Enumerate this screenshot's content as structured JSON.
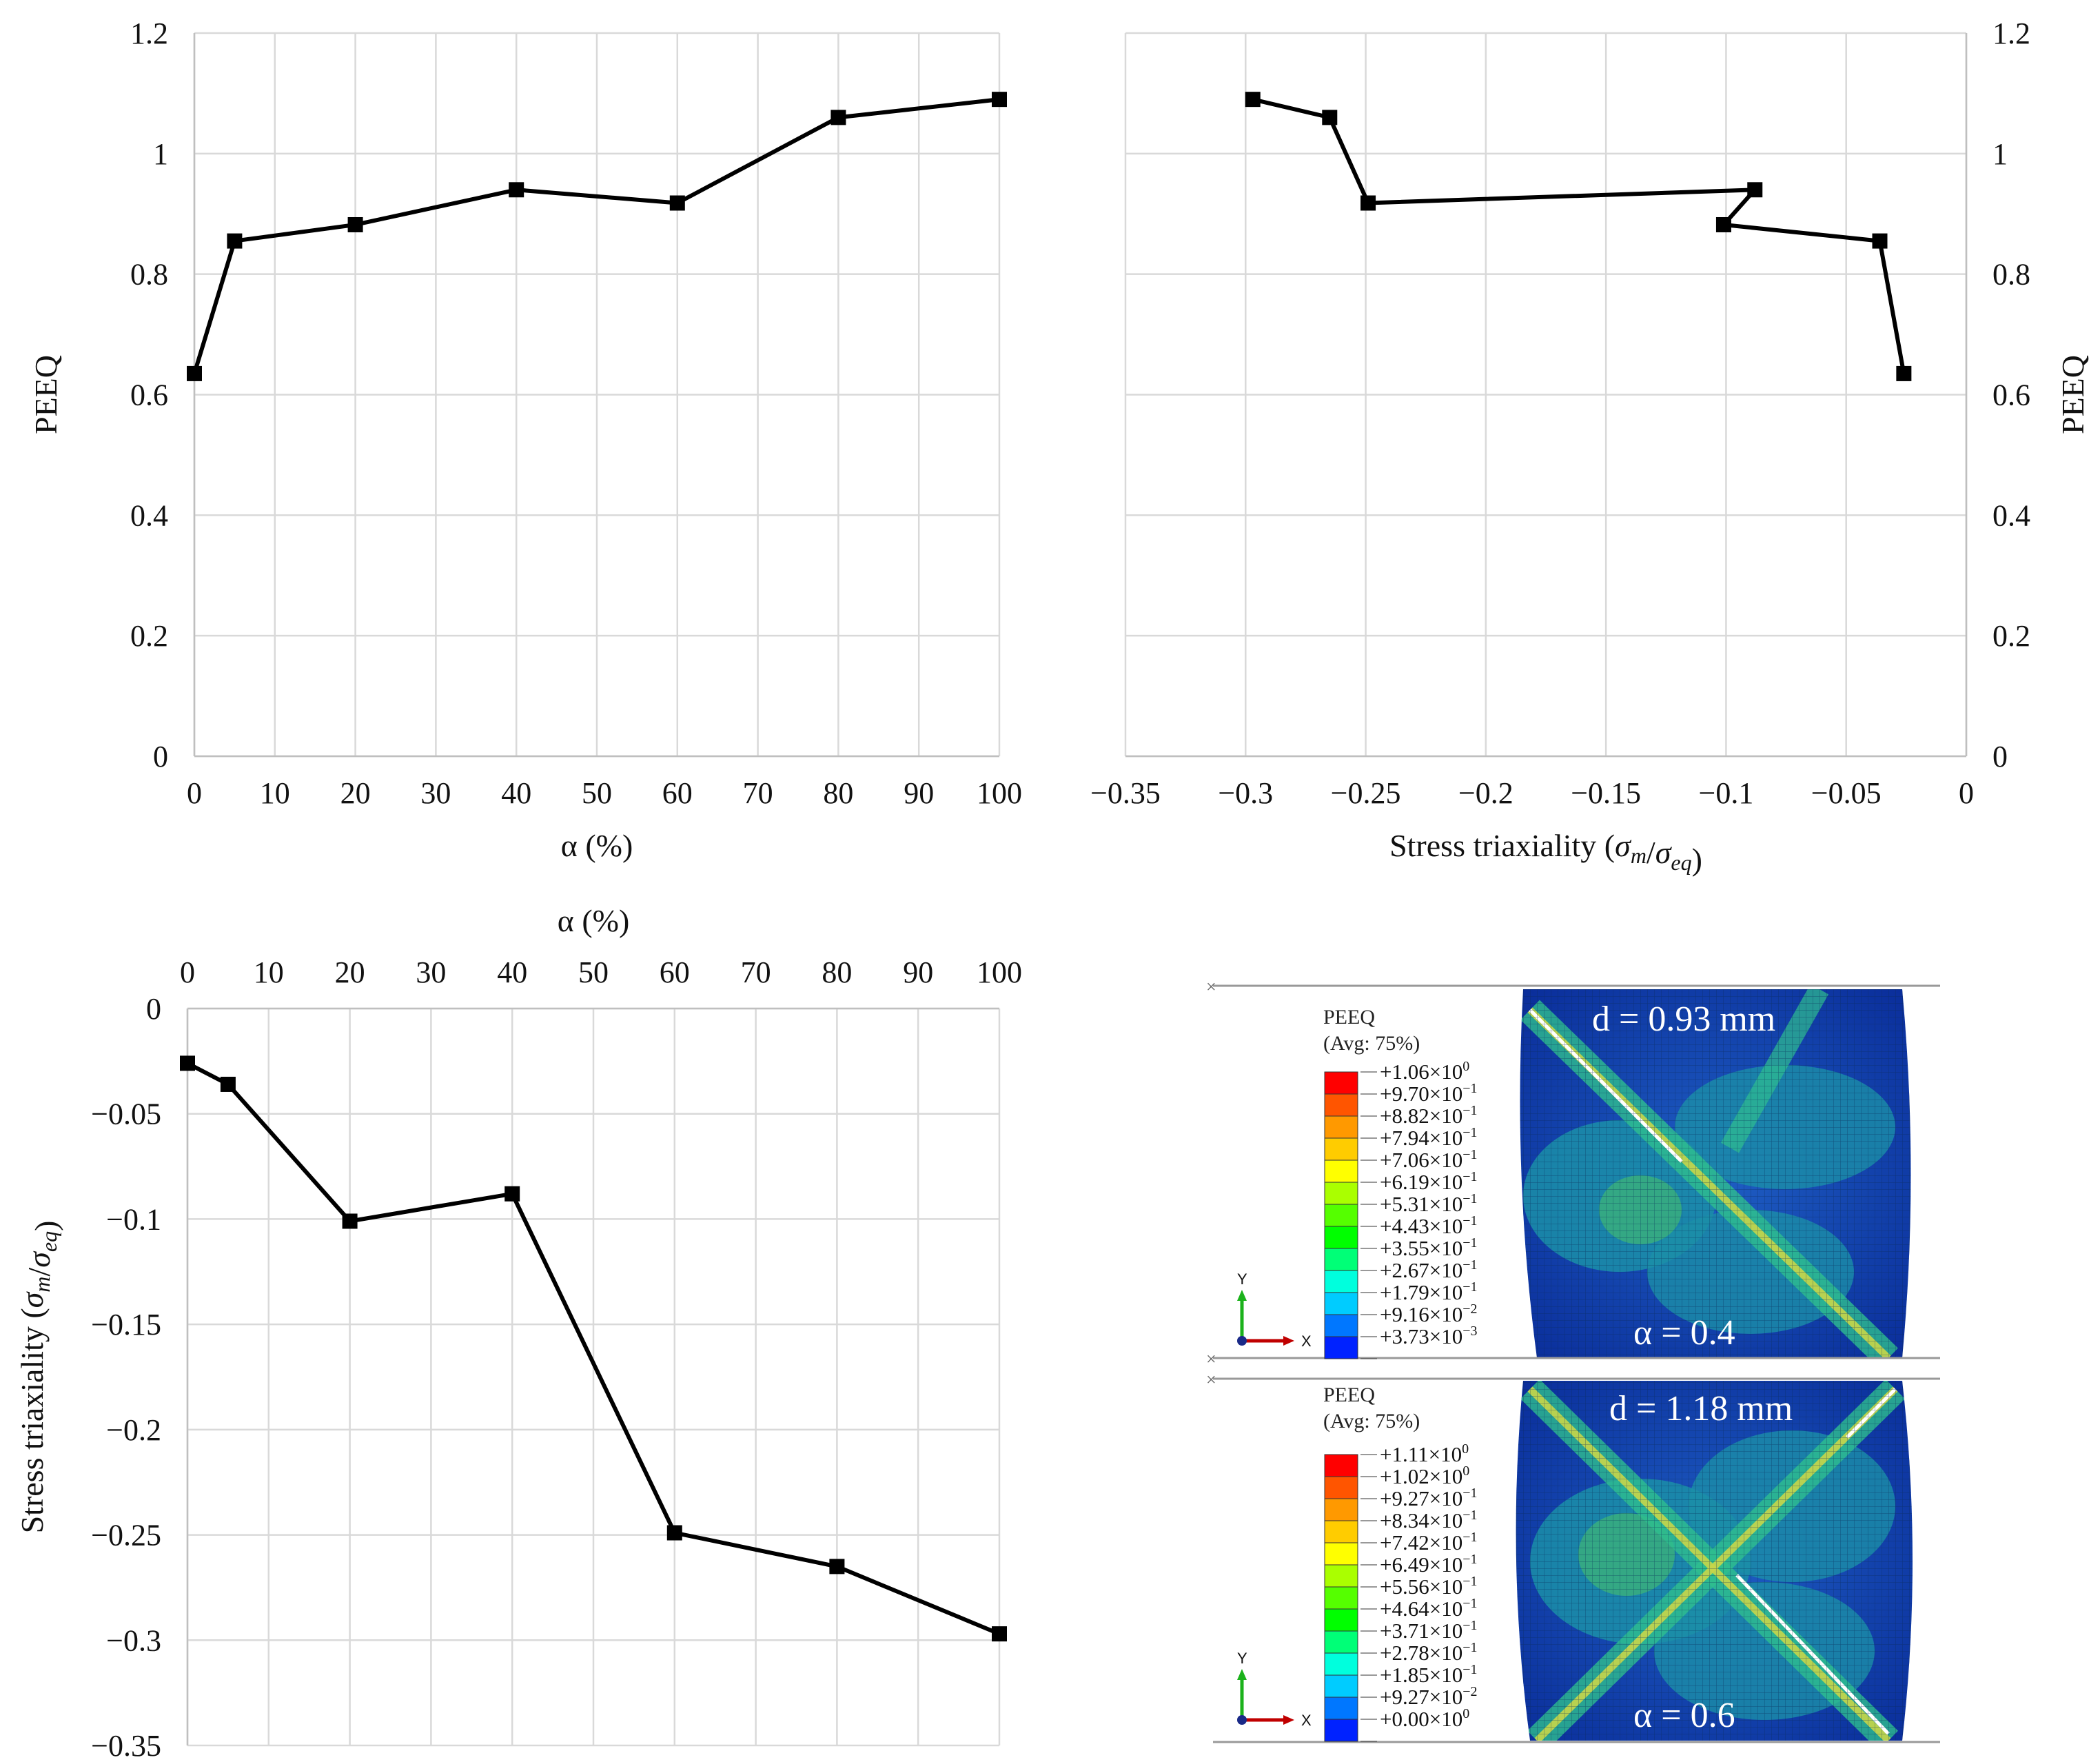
{
  "chart_data": [
    {
      "type": "line",
      "xlabel": "α (%)",
      "ylabel": "PEEQ",
      "xlim": [
        0,
        100
      ],
      "ylim": [
        0,
        1.2
      ],
      "xticks": [
        "0",
        "10",
        "20",
        "30",
        "40",
        "50",
        "60",
        "70",
        "80",
        "90",
        "100"
      ],
      "yticks": [
        "0",
        "0.2",
        "0.4",
        "0.6",
        "0.8",
        "1",
        "1.2"
      ],
      "x": [
        0,
        5,
        20,
        40,
        60,
        80,
        100
      ],
      "y": [
        0.635,
        0.855,
        0.882,
        0.94,
        0.918,
        1.06,
        1.09
      ],
      "grid": true,
      "y_axis_side": "left"
    },
    {
      "type": "line",
      "xlabel": {
        "text": "Stress triaxiality (",
        "sym": "σ",
        "sub1": "m",
        "sep": "/",
        "sym2": "σ",
        "sub2": "eq",
        "close": ")"
      },
      "ylabel": "PEEQ",
      "xlim": [
        -0.35,
        0
      ],
      "ylim": [
        0,
        1.2
      ],
      "xticks": [
        "−0.35",
        "−0.3",
        "−0.25",
        "−0.2",
        "−0.15",
        "−0.1",
        "−0.05",
        "0"
      ],
      "yticks": [
        "0",
        "0.2",
        "0.4",
        "0.6",
        "0.8",
        "1",
        "1.2"
      ],
      "x": [
        -0.297,
        -0.265,
        -0.249,
        -0.088,
        -0.101,
        -0.036,
        -0.026
      ],
      "y": [
        1.09,
        1.06,
        0.918,
        0.94,
        0.882,
        0.855,
        0.635
      ],
      "grid": true,
      "y_axis_side": "right"
    },
    {
      "type": "line",
      "xlabel": "α (%)",
      "ylabel": {
        "text": "Stress triaxiality (",
        "sym": "σ",
        "sub1": "m",
        "sep": "/",
        "sym2": "σ",
        "sub2": "eq",
        "close": ")"
      },
      "xlim": [
        0,
        100
      ],
      "ylim": [
        -0.35,
        0
      ],
      "xticks": [
        "0",
        "10",
        "20",
        "30",
        "40",
        "50",
        "60",
        "70",
        "80",
        "90",
        "100"
      ],
      "yticks": [
        "0",
        "−0.05",
        "−0.1",
        "−0.15",
        "−0.2",
        "−0.25",
        "−0.3",
        "−0.35"
      ],
      "x": [
        0,
        5,
        20,
        40,
        60,
        80,
        100
      ],
      "y": [
        -0.026,
        -0.036,
        -0.101,
        -0.088,
        -0.249,
        -0.265,
        -0.297
      ],
      "grid": true,
      "x_axis_side": "top"
    }
  ],
  "simulation": {
    "legend_title": "PEEQ",
    "legend_avg": "(Avg: 75%)",
    "triad_y": "Y",
    "triad_x": "X",
    "colors": [
      "#ff0000",
      "#ff5500",
      "#ff9900",
      "#ffcc00",
      "#ffff00",
      "#aaff00",
      "#55ff00",
      "#00ff00",
      "#00ff77",
      "#00ffdd",
      "#00ccff",
      "#0077ff",
      "#0022ff"
    ],
    "panels": [
      {
        "distance": "d = 0.93 mm",
        "alpha": "α = 0.4",
        "values": [
          {
            "m": "+1.06×10",
            "e": "0"
          },
          {
            "m": "+9.70×10",
            "e": "−1"
          },
          {
            "m": "+8.82×10",
            "e": "−1"
          },
          {
            "m": "+7.94×10",
            "e": "−1"
          },
          {
            "m": "+7.06×10",
            "e": "−1"
          },
          {
            "m": "+6.19×10",
            "e": "−1"
          },
          {
            "m": "+5.31×10",
            "e": "−1"
          },
          {
            "m": "+4.43×10",
            "e": "−1"
          },
          {
            "m": "+3.55×10",
            "e": "−1"
          },
          {
            "m": "+2.67×10",
            "e": "−1"
          },
          {
            "m": "+1.79×10",
            "e": "−1"
          },
          {
            "m": "+9.16×10",
            "e": "−2"
          },
          {
            "m": "+3.73×10",
            "e": "−3"
          }
        ]
      },
      {
        "distance": "d = 1.18 mm",
        "alpha": "α = 0.6",
        "values": [
          {
            "m": "+1.11×10",
            "e": "0"
          },
          {
            "m": "+1.02×10",
            "e": "0"
          },
          {
            "m": "+9.27×10",
            "e": "−1"
          },
          {
            "m": "+8.34×10",
            "e": "−1"
          },
          {
            "m": "+7.42×10",
            "e": "−1"
          },
          {
            "m": "+6.49×10",
            "e": "−1"
          },
          {
            "m": "+5.56×10",
            "e": "−1"
          },
          {
            "m": "+4.64×10",
            "e": "−1"
          },
          {
            "m": "+3.71×10",
            "e": "−1"
          },
          {
            "m": "+2.78×10",
            "e": "−1"
          },
          {
            "m": "+1.85×10",
            "e": "−1"
          },
          {
            "m": "+9.27×10",
            "e": "−2"
          },
          {
            "m": "+0.00×10",
            "e": "0"
          }
        ]
      }
    ]
  }
}
